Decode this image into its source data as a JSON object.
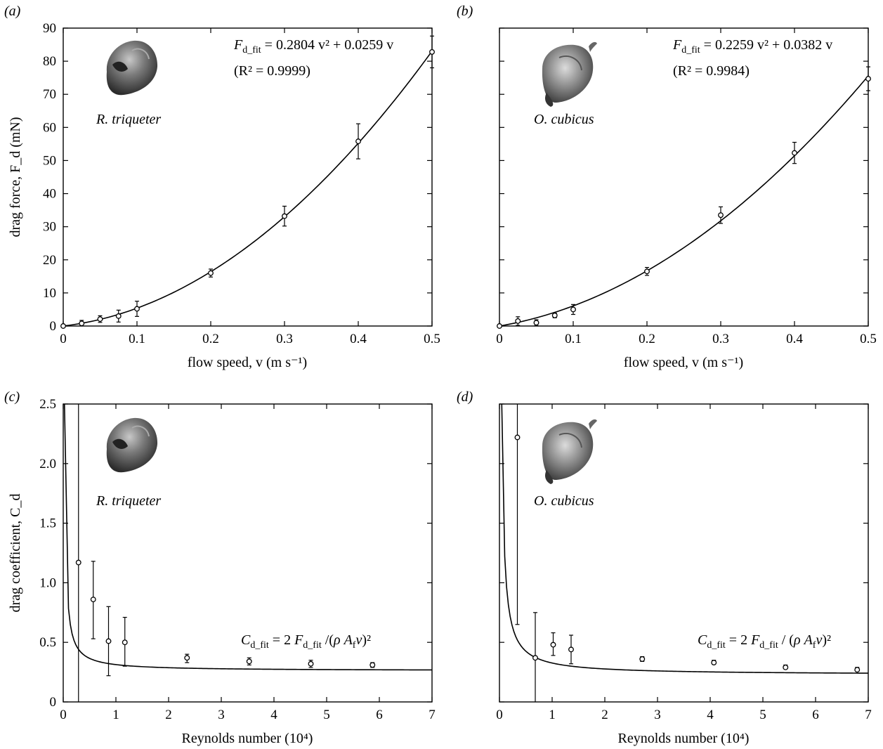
{
  "panels": [
    {
      "label": "(a)",
      "species": "R. triqueter",
      "eq_main": "F",
      "eq_sub": "d_fit",
      "eq_rest": " = 0.2804 v² + 0.0259 v",
      "eq_r2": "(R² = 0.9999)",
      "xlabel": "flow speed, v (m s⁻¹)",
      "ylabel": "drag force, F_d (mN)"
    },
    {
      "label": "(b)",
      "species": "O. cubicus",
      "eq_main": "F",
      "eq_sub": "d_fit",
      "eq_rest": " = 0.2259 v² + 0.0382 v",
      "eq_r2": "(R² = 0.9984)",
      "xlabel": "flow speed, v (m s⁻¹)",
      "ylabel": ""
    },
    {
      "label": "(c)",
      "species": "R. triqueter",
      "eq_main": "C",
      "eq_sub": "d_fit",
      "eq_rest": " = 2 F_d_fit /(ρ A_f v)²",
      "eq_r2": "",
      "xlabel": "Reynolds number (10⁴)",
      "ylabel": "drag coefficient, C_d"
    },
    {
      "label": "(d)",
      "species": "O. cubicus",
      "eq_main": "C",
      "eq_sub": "d_fit",
      "eq_rest": " = 2 F_d_fit / (ρ A_f v)²",
      "eq_r2": "",
      "xlabel": "Reynolds number (10⁴)",
      "ylabel": ""
    }
  ],
  "chart_data": [
    {
      "type": "scatter",
      "panel": "(a)",
      "xlim": [
        0,
        0.5
      ],
      "ylim": [
        0,
        90
      ],
      "xticks": [
        0,
        0.1,
        0.2,
        0.3,
        0.4,
        0.5
      ],
      "yticks": [
        0,
        10,
        20,
        30,
        40,
        50,
        60,
        70,
        80,
        90
      ],
      "series": [
        {
          "x": [
            0,
            0.025,
            0.05,
            0.075,
            0.1,
            0.2,
            0.3,
            0.4,
            0.5
          ],
          "y": [
            0,
            0.8,
            2.1,
            3.0,
            5.2,
            16.0,
            33.2,
            55.8,
            82.8
          ],
          "yerr": [
            0.3,
            0.9,
            1.0,
            1.8,
            2.3,
            1.2,
            3.0,
            5.3,
            4.8
          ]
        }
      ],
      "fit": {
        "a": 0.2804,
        "b": 0.0259,
        "scale": 1000
      }
    },
    {
      "type": "scatter",
      "panel": "(b)",
      "xlim": [
        0,
        0.5
      ],
      "ylim": [
        0,
        90
      ],
      "xticks": [
        0,
        0.1,
        0.2,
        0.3,
        0.4,
        0.5
      ],
      "yticks": [
        0,
        10,
        20,
        30,
        40,
        50,
        60,
        70,
        80,
        90
      ],
      "series": [
        {
          "x": [
            0,
            0.025,
            0.05,
            0.075,
            0.1,
            0.2,
            0.3,
            0.4,
            0.5
          ],
          "y": [
            0,
            1.5,
            1.0,
            3.2,
            5.0,
            16.5,
            33.5,
            52.3,
            74.7
          ],
          "yerr": [
            0.3,
            1.3,
            0.9,
            0.7,
            1.5,
            1.2,
            2.5,
            3.2,
            3.6
          ]
        }
      ],
      "fit": {
        "a": 0.2259,
        "b": 0.0382,
        "scale": 1000
      }
    },
    {
      "type": "scatter",
      "panel": "(c)",
      "xlim": [
        0,
        7
      ],
      "ylim": [
        0,
        2.5
      ],
      "xticks": [
        0,
        1,
        2,
        3,
        4,
        5,
        6,
        7
      ],
      "yticks": [
        0,
        0.5,
        1.0,
        1.5,
        2.0,
        2.5
      ],
      "series": [
        {
          "x": [
            0.29,
            0.57,
            0.86,
            1.17,
            2.35,
            3.53,
            4.7,
            5.87
          ],
          "y": [
            1.17,
            0.86,
            0.51,
            0.5,
            0.37,
            0.34,
            0.32,
            0.31
          ],
          "ylow": [
            0,
            0.53,
            0.22,
            0.3,
            0.33,
            0.31,
            0.29,
            0.29
          ],
          "yhigh": [
            2.5,
            1.18,
            0.8,
            0.71,
            0.4,
            0.37,
            0.35,
            0.33
          ]
        }
      ],
      "fit": {
        "c": 0.261,
        "d": 0.0523
      }
    },
    {
      "type": "scatter",
      "panel": "(d)",
      "xlim": [
        0,
        7
      ],
      "ylim": [
        0,
        2.5
      ],
      "xticks": [
        0,
        1,
        2,
        3,
        4,
        5,
        6,
        7
      ],
      "yticks": [
        0,
        0.5,
        1.0,
        1.5,
        2.0,
        2.5
      ],
      "series": [
        {
          "x": [
            0.34,
            0.68,
            1.02,
            1.36,
            2.71,
            4.07,
            5.43,
            6.79
          ],
          "y": [
            2.22,
            0.37,
            0.48,
            0.44,
            0.36,
            0.33,
            0.29,
            0.27
          ],
          "ylow": [
            0.65,
            0,
            0.39,
            0.32,
            0.34,
            0.32,
            0.28,
            0.26
          ],
          "yhigh": [
            2.5,
            0.75,
            0.58,
            0.56,
            0.38,
            0.35,
            0.31,
            0.29
          ]
        }
      ],
      "fit": {
        "c": 0.227,
        "d": 0.0995
      }
    }
  ]
}
